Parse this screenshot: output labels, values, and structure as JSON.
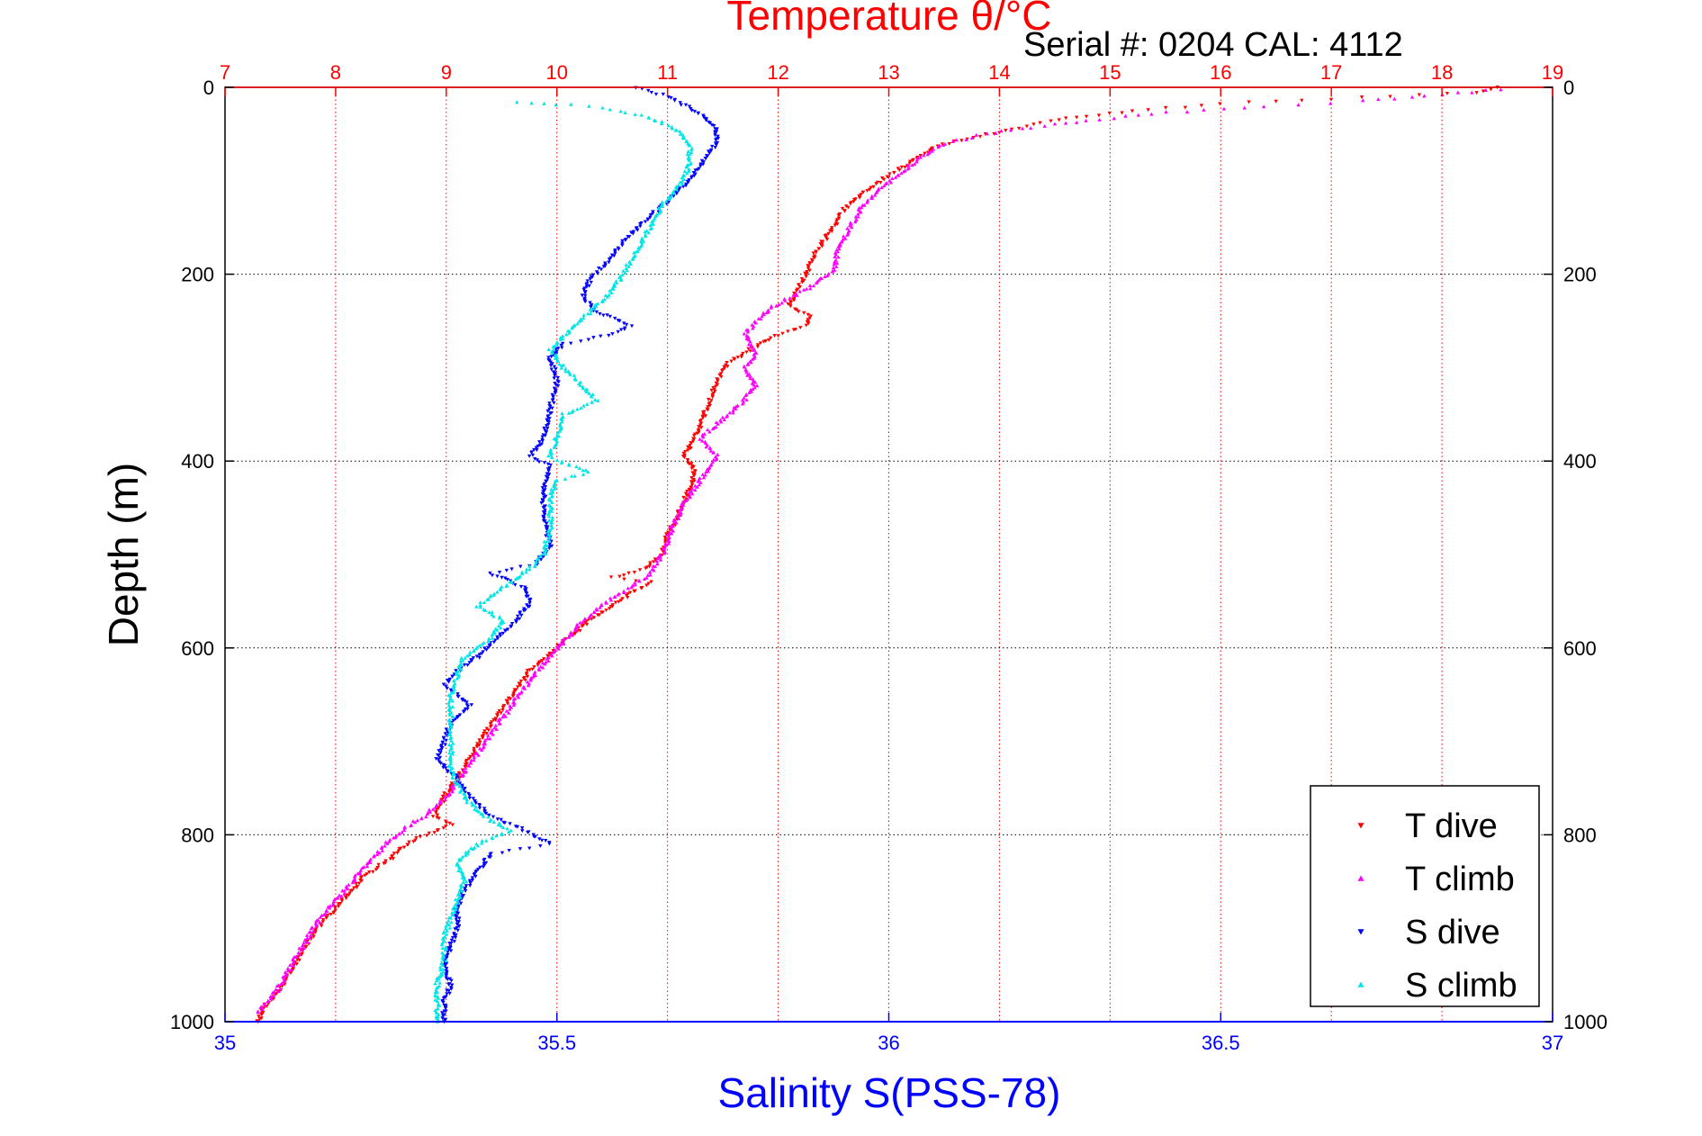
{
  "chart_data": {
    "type": "scatter",
    "title_top": "Temperature θ/°C",
    "serial_text": "Serial #: 0204  CAL: 4112",
    "ylabel": "Depth (m)",
    "xlabel_bottom": "Salinity S(PSS-78)",
    "ylim": [
      0,
      1000
    ],
    "y_reversed": true,
    "xlim_temperature": [
      7,
      19
    ],
    "xlim_salinity": [
      35,
      37
    ],
    "temperature_ticks": [
      "7",
      "8",
      "9",
      "10",
      "11",
      "12",
      "13",
      "14",
      "15",
      "16",
      "17",
      "18",
      "19"
    ],
    "salinity_ticks": [
      "35",
      "35.5",
      "36",
      "36.5",
      "37"
    ],
    "depth_ticks": [
      "0",
      "200",
      "400",
      "600",
      "800",
      "1000"
    ],
    "grid": "dotted",
    "legend_position": "bottom-right",
    "colors": {
      "temperature_axis": "#ff0000",
      "salinity_axis": "#0000ff",
      "t_dive": "#ff0000",
      "t_climb": "#ff00ff",
      "s_dive": "#0000ff",
      "s_climb": "#00e5e5"
    },
    "series": [
      {
        "name": "T dive",
        "axis": "temperature",
        "marker": "triangle-down",
        "points": [
          [
            18.5,
            0
          ],
          [
            18.3,
            5
          ],
          [
            17.0,
            12
          ],
          [
            16.0,
            18
          ],
          [
            15.2,
            25
          ],
          [
            14.7,
            32
          ],
          [
            14.3,
            40
          ],
          [
            14.0,
            48
          ],
          [
            13.7,
            55
          ],
          [
            13.4,
            65
          ],
          [
            13.2,
            80
          ],
          [
            13.0,
            95
          ],
          [
            12.8,
            110
          ],
          [
            12.6,
            130
          ],
          [
            12.5,
            150
          ],
          [
            12.35,
            175
          ],
          [
            12.25,
            200
          ],
          [
            12.15,
            220
          ],
          [
            12.1,
            235
          ],
          [
            12.3,
            245
          ],
          [
            12.25,
            255
          ],
          [
            12.0,
            265
          ],
          [
            11.75,
            280
          ],
          [
            11.55,
            295
          ],
          [
            11.45,
            315
          ],
          [
            11.35,
            345
          ],
          [
            11.25,
            375
          ],
          [
            11.15,
            395
          ],
          [
            11.25,
            410
          ],
          [
            11.2,
            430
          ],
          [
            11.1,
            455
          ],
          [
            11.0,
            480
          ],
          [
            10.95,
            500
          ],
          [
            10.8,
            515
          ],
          [
            10.5,
            525
          ],
          [
            10.85,
            530
          ],
          [
            10.7,
            540
          ],
          [
            10.5,
            555
          ],
          [
            10.3,
            570
          ],
          [
            10.1,
            590
          ],
          [
            9.95,
            605
          ],
          [
            9.75,
            625
          ],
          [
            9.6,
            650
          ],
          [
            9.45,
            675
          ],
          [
            9.3,
            700
          ],
          [
            9.15,
            730
          ],
          [
            9.0,
            755
          ],
          [
            8.9,
            780
          ],
          [
            9.05,
            790
          ],
          [
            8.7,
            805
          ],
          [
            8.5,
            825
          ],
          [
            8.25,
            845
          ],
          [
            8.1,
            865
          ],
          [
            7.95,
            885
          ],
          [
            7.8,
            905
          ],
          [
            7.7,
            925
          ],
          [
            7.6,
            945
          ],
          [
            7.5,
            965
          ],
          [
            7.35,
            985
          ],
          [
            7.3,
            1000
          ]
        ]
      },
      {
        "name": "T climb",
        "axis": "temperature",
        "marker": "triangle-up",
        "points": [
          [
            18.55,
            2
          ],
          [
            18.0,
            8
          ],
          [
            17.3,
            15
          ],
          [
            16.4,
            20
          ],
          [
            15.5,
            27
          ],
          [
            14.9,
            34
          ],
          [
            14.5,
            40
          ],
          [
            14.1,
            46
          ],
          [
            13.8,
            52
          ],
          [
            13.5,
            60
          ],
          [
            13.3,
            75
          ],
          [
            13.1,
            92
          ],
          [
            12.9,
            110
          ],
          [
            12.75,
            130
          ],
          [
            12.65,
            150
          ],
          [
            12.55,
            170
          ],
          [
            12.5,
            195
          ],
          [
            12.35,
            210
          ],
          [
            12.15,
            222
          ],
          [
            11.95,
            235
          ],
          [
            11.8,
            250
          ],
          [
            11.7,
            265
          ],
          [
            11.8,
            285
          ],
          [
            11.7,
            300
          ],
          [
            11.8,
            320
          ],
          [
            11.65,
            340
          ],
          [
            11.5,
            355
          ],
          [
            11.3,
            375
          ],
          [
            11.45,
            395
          ],
          [
            11.3,
            420
          ],
          [
            11.15,
            445
          ],
          [
            11.05,
            470
          ],
          [
            10.95,
            500
          ],
          [
            10.85,
            520
          ],
          [
            10.6,
            540
          ],
          [
            10.4,
            555
          ],
          [
            10.2,
            575
          ],
          [
            10.05,
            595
          ],
          [
            9.9,
            615
          ],
          [
            9.75,
            635
          ],
          [
            9.6,
            660
          ],
          [
            9.45,
            685
          ],
          [
            9.3,
            710
          ],
          [
            9.15,
            735
          ],
          [
            9.0,
            760
          ],
          [
            8.8,
            780
          ],
          [
            8.6,
            795
          ],
          [
            8.45,
            810
          ],
          [
            8.3,
            830
          ],
          [
            8.15,
            850
          ],
          [
            8.0,
            870
          ],
          [
            7.85,
            890
          ],
          [
            7.75,
            910
          ],
          [
            7.65,
            930
          ],
          [
            7.55,
            950
          ],
          [
            7.45,
            970
          ],
          [
            7.3,
            990
          ]
        ]
      },
      {
        "name": "S dive",
        "axis": "salinity",
        "marker": "triangle-down",
        "points": [
          [
            35.62,
            0
          ],
          [
            35.66,
            8
          ],
          [
            35.69,
            18
          ],
          [
            35.72,
            30
          ],
          [
            35.74,
            45
          ],
          [
            35.74,
            60
          ],
          [
            35.72,
            80
          ],
          [
            35.7,
            100
          ],
          [
            35.67,
            120
          ],
          [
            35.63,
            145
          ],
          [
            35.6,
            165
          ],
          [
            35.58,
            185
          ],
          [
            35.55,
            205
          ],
          [
            35.54,
            225
          ],
          [
            35.56,
            240
          ],
          [
            35.61,
            255
          ],
          [
            35.58,
            265
          ],
          [
            35.51,
            275
          ],
          [
            35.49,
            290
          ],
          [
            35.5,
            315
          ],
          [
            35.49,
            345
          ],
          [
            35.48,
            375
          ],
          [
            35.46,
            395
          ],
          [
            35.49,
            405
          ],
          [
            35.48,
            430
          ],
          [
            35.48,
            460
          ],
          [
            35.49,
            490
          ],
          [
            35.47,
            510
          ],
          [
            35.4,
            520
          ],
          [
            35.45,
            535
          ],
          [
            35.46,
            550
          ],
          [
            35.44,
            570
          ],
          [
            35.41,
            590
          ],
          [
            35.38,
            610
          ],
          [
            35.35,
            625
          ],
          [
            35.33,
            640
          ],
          [
            35.37,
            660
          ],
          [
            35.34,
            680
          ],
          [
            35.33,
            700
          ],
          [
            35.32,
            720
          ],
          [
            35.35,
            740
          ],
          [
            35.37,
            760
          ],
          [
            35.4,
            780
          ],
          [
            35.45,
            795
          ],
          [
            35.49,
            810
          ],
          [
            35.4,
            820
          ],
          [
            35.38,
            840
          ],
          [
            35.36,
            860
          ],
          [
            35.35,
            880
          ],
          [
            35.35,
            900
          ],
          [
            35.34,
            920
          ],
          [
            35.33,
            940
          ],
          [
            35.34,
            960
          ],
          [
            35.33,
            980
          ],
          [
            35.33,
            1000
          ]
        ]
      },
      {
        "name": "S climb",
        "axis": "salinity",
        "marker": "triangle-up",
        "points": [
          [
            35.44,
            15
          ],
          [
            35.5,
            18
          ],
          [
            35.57,
            22
          ],
          [
            35.63,
            30
          ],
          [
            35.68,
            45
          ],
          [
            35.7,
            60
          ],
          [
            35.7,
            80
          ],
          [
            35.69,
            100
          ],
          [
            35.66,
            125
          ],
          [
            35.64,
            150
          ],
          [
            35.62,
            175
          ],
          [
            35.6,
            200
          ],
          [
            35.58,
            220
          ],
          [
            35.55,
            240
          ],
          [
            35.52,
            260
          ],
          [
            35.49,
            280
          ],
          [
            35.51,
            300
          ],
          [
            35.54,
            320
          ],
          [
            35.56,
            335
          ],
          [
            35.51,
            350
          ],
          [
            35.5,
            375
          ],
          [
            35.49,
            395
          ],
          [
            35.52,
            405
          ],
          [
            35.55,
            412
          ],
          [
            35.5,
            420
          ],
          [
            35.49,
            440
          ],
          [
            35.49,
            470
          ],
          [
            35.48,
            500
          ],
          [
            35.46,
            515
          ],
          [
            35.42,
            535
          ],
          [
            35.38,
            555
          ],
          [
            35.42,
            570
          ],
          [
            35.4,
            590
          ],
          [
            35.36,
            610
          ],
          [
            35.35,
            630
          ],
          [
            35.34,
            650
          ],
          [
            35.34,
            670
          ],
          [
            35.34,
            700
          ],
          [
            35.34,
            730
          ],
          [
            35.36,
            760
          ],
          [
            35.39,
            780
          ],
          [
            35.43,
            795
          ],
          [
            35.38,
            810
          ],
          [
            35.35,
            830
          ],
          [
            35.36,
            850
          ],
          [
            35.35,
            870
          ],
          [
            35.34,
            890
          ],
          [
            35.33,
            910
          ],
          [
            35.33,
            935
          ],
          [
            35.32,
            960
          ],
          [
            35.32,
            985
          ],
          [
            35.32,
            1000
          ]
        ]
      }
    ]
  }
}
